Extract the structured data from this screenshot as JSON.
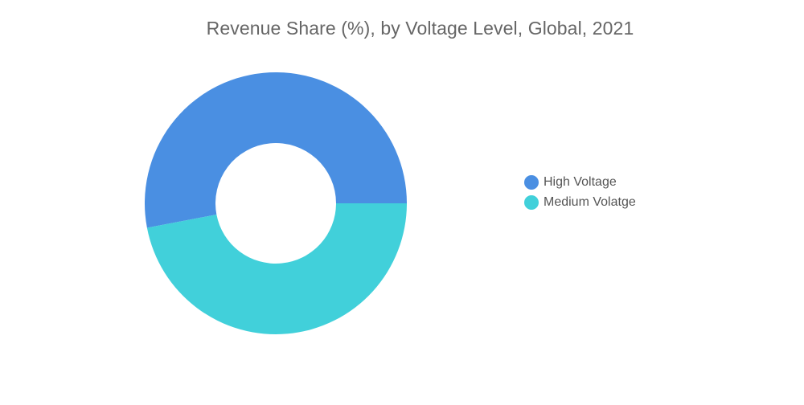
{
  "chart_data": {
    "type": "pie",
    "title": "Revenue Share (%), by Voltage Level, Global, 2021",
    "donut": true,
    "categories": [
      "High Voltage",
      "Medium Volatge"
    ],
    "values": [
      53,
      47
    ],
    "colors": [
      "#4a8fe2",
      "#41d0da"
    ],
    "legend": "right"
  }
}
